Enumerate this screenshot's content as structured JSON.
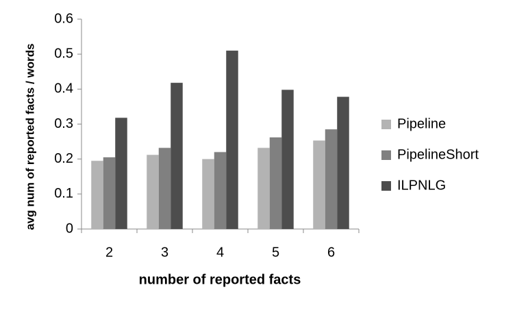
{
  "chart_data": {
    "type": "bar",
    "x_label": "number of reported facts",
    "y_label": "avg  num of reported facts / words",
    "categories": [
      "2",
      "3",
      "4",
      "5",
      "6"
    ],
    "series": [
      {
        "name": "Pipeline",
        "color": "#b3b3b3",
        "values": [
          0.195,
          0.212,
          0.2,
          0.232,
          0.253
        ]
      },
      {
        "name": "PipelineShort",
        "color": "#808080",
        "values": [
          0.205,
          0.232,
          0.22,
          0.262,
          0.285
        ]
      },
      {
        "name": "ILPNLG",
        "color": "#4d4d4d",
        "values": [
          0.318,
          0.418,
          0.51,
          0.398,
          0.378
        ]
      }
    ],
    "ylim": [
      0,
      0.6
    ],
    "yticks": [
      0,
      0.1,
      0.2,
      0.3,
      0.4,
      0.5,
      0.6
    ],
    "grid": false,
    "legend": "right"
  }
}
